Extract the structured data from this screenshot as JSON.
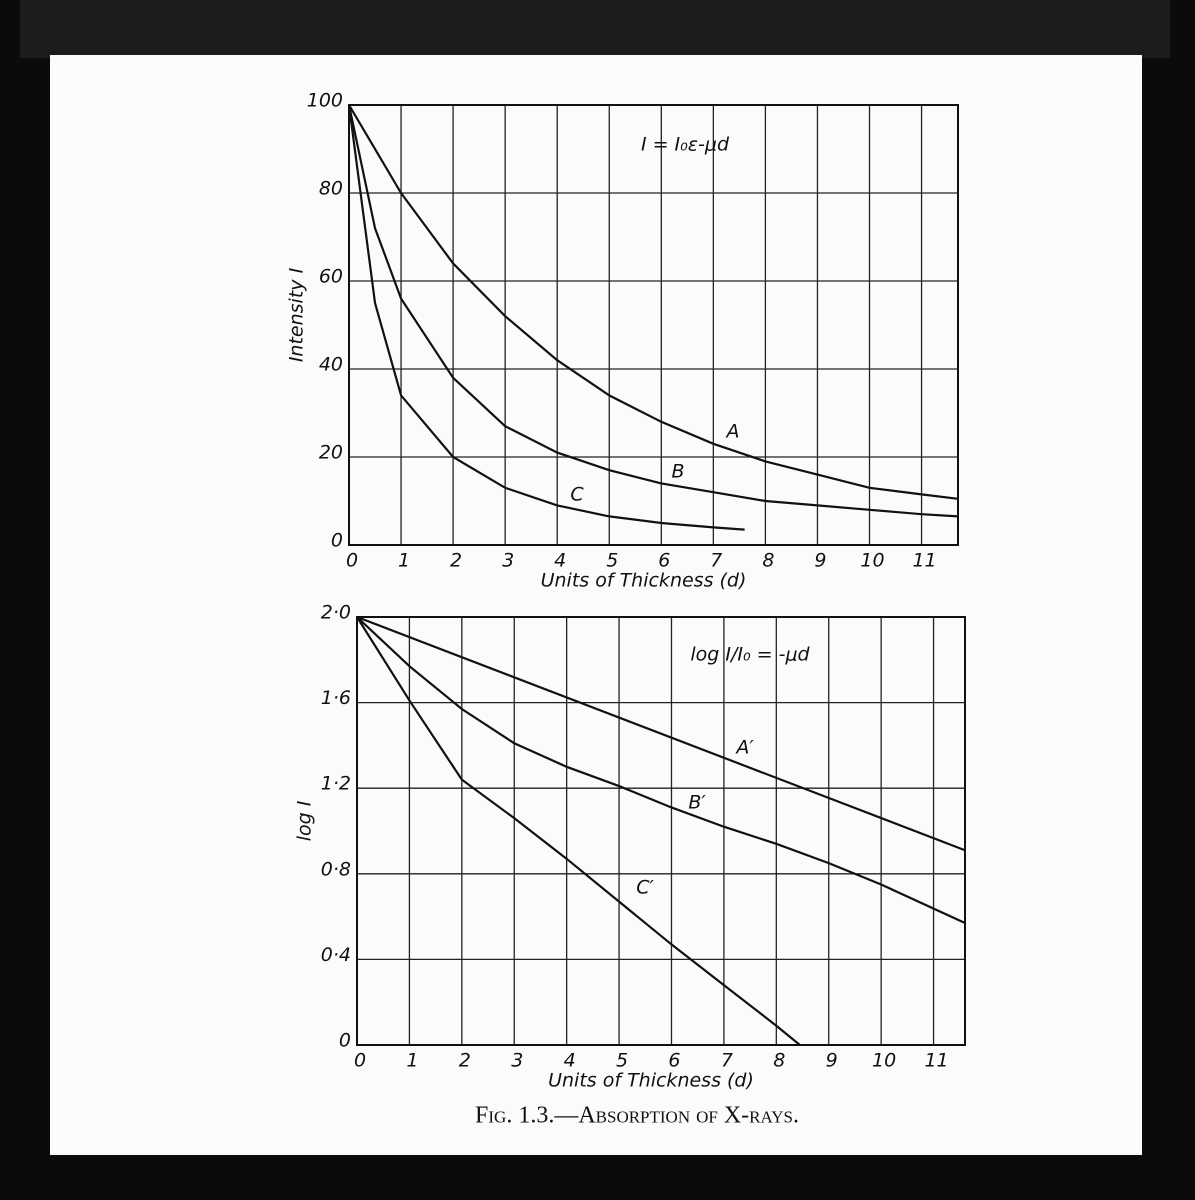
{
  "chart_data": [
    {
      "type": "line",
      "ylabel": "Intensity I",
      "xlabel": "Units of Thickness (d)",
      "annotation": "I = I₀ε-μd",
      "xlim": [
        0,
        11.7
      ],
      "ylim": [
        0,
        100
      ],
      "xticks": [
        0,
        1,
        2,
        3,
        4,
        5,
        6,
        7,
        8,
        9,
        10,
        11
      ],
      "yticks": [
        0,
        20,
        40,
        60,
        80,
        100
      ],
      "grid": true,
      "series": [
        {
          "name": "A",
          "color": "#111111",
          "x": [
            0,
            1,
            2,
            3,
            4,
            5,
            6,
            7,
            8,
            9,
            10,
            11,
            11.7
          ],
          "values": [
            100,
            80,
            64,
            52,
            42,
            34,
            28,
            23,
            19,
            16,
            13,
            11.5,
            10.5
          ]
        },
        {
          "name": "B",
          "color": "#111111",
          "x": [
            0,
            0.5,
            1,
            2,
            3,
            4,
            5,
            6,
            7,
            8,
            9,
            10,
            11,
            11.7
          ],
          "values": [
            100,
            72,
            56,
            38,
            27,
            21,
            17,
            14,
            12,
            10,
            9,
            8,
            7,
            6.5
          ]
        },
        {
          "name": "C",
          "color": "#111111",
          "x": [
            0,
            0.5,
            1,
            2,
            3,
            4,
            5,
            6,
            7,
            7.6
          ],
          "values": [
            100,
            55,
            34,
            20,
            13,
            9,
            6.5,
            5,
            4,
            3.5
          ]
        }
      ]
    },
    {
      "type": "line",
      "ylabel": "log I",
      "xlabel": "Units of Thickness (d)",
      "annotation": "log I/I₀ = -μd",
      "xlim": [
        0,
        11.6
      ],
      "ylim": [
        0,
        2.0
      ],
      "xticks": [
        0,
        1,
        2,
        3,
        4,
        5,
        6,
        7,
        8,
        9,
        10,
        11
      ],
      "yticks": [
        0,
        {
          "value": 0.4,
          "label": "0·4"
        },
        {
          "value": 0.8,
          "label": "0·8"
        },
        {
          "value": 1.2,
          "label": "1·2"
        },
        {
          "value": 1.6,
          "label": "1·6"
        },
        {
          "value": 2.0,
          "label": "2·0"
        }
      ],
      "grid": true,
      "series": [
        {
          "name": "A′",
          "color": "#111111",
          "x": [
            0,
            11.6
          ],
          "values": [
            2.0,
            0.91
          ]
        },
        {
          "name": "B′",
          "color": "#111111",
          "x": [
            0,
            1,
            2,
            3,
            4,
            5,
            6,
            7,
            8,
            9,
            10,
            11.6
          ],
          "values": [
            2.0,
            1.77,
            1.57,
            1.41,
            1.3,
            1.21,
            1.11,
            1.02,
            0.94,
            0.85,
            0.75,
            0.57
          ]
        },
        {
          "name": "C′",
          "color": "#111111",
          "x": [
            0,
            1,
            2,
            3,
            4,
            5,
            6,
            7,
            8,
            8.45
          ],
          "values": [
            2.0,
            1.61,
            1.24,
            1.06,
            0.87,
            0.67,
            0.47,
            0.28,
            0.09,
            0
          ]
        }
      ]
    }
  ],
  "caption": "Fig. 1.3.—Absorption of X-rays."
}
